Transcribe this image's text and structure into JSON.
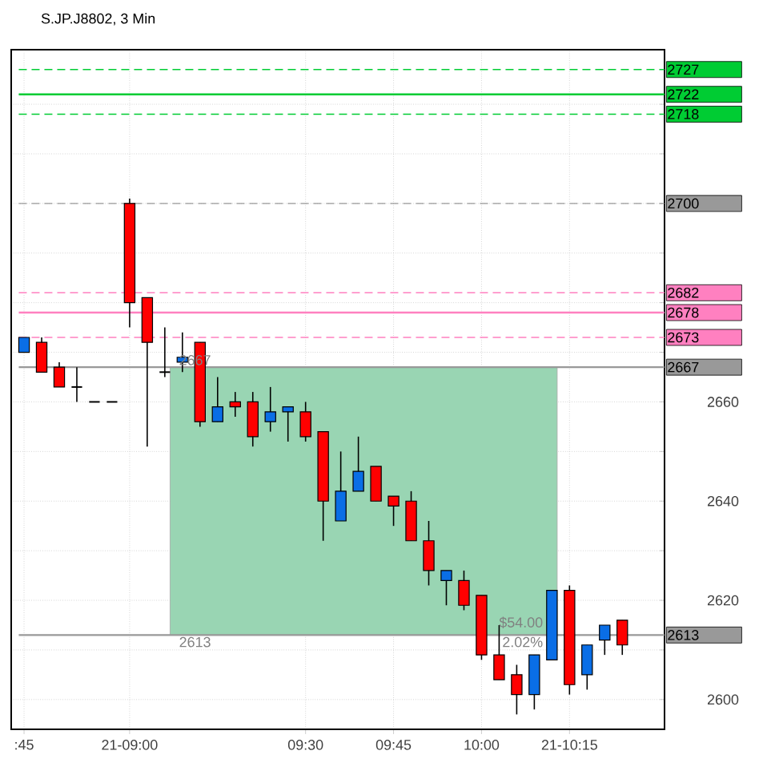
{
  "chart_data": {
    "type": "candlestick",
    "title": "S.JP.J8802, 3 Min",
    "categories": [
      ":45",
      null,
      null,
      null,
      null,
      null,
      "21-09:00",
      null,
      null,
      null,
      null,
      null,
      null,
      null,
      null,
      null,
      "09:30",
      null,
      null,
      null,
      null,
      "09:45",
      null,
      null,
      null,
      null,
      "10:00",
      null,
      null,
      null,
      null,
      "21-10:15",
      null,
      null,
      null
    ],
    "ohlc": [
      [
        2670,
        2673,
        2670,
        2673
      ],
      [
        2672,
        2673,
        2666,
        2666
      ],
      [
        2667,
        2668,
        2663,
        2663
      ],
      [
        2663,
        2667,
        2660,
        2663
      ],
      [
        2660,
        2660,
        2660,
        2660
      ],
      [
        2660,
        2660,
        2660,
        2660
      ],
      [
        2700,
        2701,
        2675,
        2680
      ],
      [
        2681,
        2681,
        2651,
        2672
      ],
      [
        2666,
        2675,
        2665,
        2666
      ],
      [
        2668,
        2674,
        2666,
        2669
      ],
      [
        2672,
        2672,
        2655,
        2656
      ],
      [
        2656,
        2665,
        2656,
        2659
      ],
      [
        2660,
        2662,
        2657,
        2659
      ],
      [
        2660,
        2662,
        2651,
        2653
      ],
      [
        2656,
        2663,
        2654,
        2658
      ],
      [
        2658,
        2659,
        2652,
        2659
      ],
      [
        2658,
        2660,
        2652,
        2653
      ],
      [
        2654,
        2654,
        2632,
        2640
      ],
      [
        2636,
        2650,
        2636,
        2642
      ],
      [
        2642,
        2653,
        2642,
        2646
      ],
      [
        2647,
        2647,
        2640,
        2640
      ],
      [
        2641,
        2641,
        2635,
        2639
      ],
      [
        2640,
        2642,
        2632,
        2632
      ],
      [
        2632,
        2636,
        2623,
        2626
      ],
      [
        2624,
        2626,
        2619,
        2626
      ],
      [
        2624,
        2626,
        2618,
        2619
      ],
      [
        2621,
        2621,
        2608,
        2609
      ],
      [
        2609,
        2615,
        2604,
        2604
      ],
      [
        2605,
        2607,
        2597,
        2601
      ],
      [
        2601,
        2609,
        2598,
        2609
      ],
      [
        2608,
        2622,
        2608,
        2622
      ],
      [
        2622,
        2623,
        2601,
        2603
      ],
      [
        2605,
        2611,
        2602,
        2611
      ],
      [
        2612,
        2615,
        2609,
        2615
      ],
      [
        2616,
        2616,
        2609,
        2611
      ]
    ],
    "colors": [
      "#0a6ee6",
      "#ff0000",
      "#ff0000",
      "#000000",
      "#000000",
      "#000000",
      "#ff0000",
      "#ff0000",
      "#000000",
      "#0a6ee6",
      "#ff0000",
      "#0a6ee6",
      "#ff0000",
      "#ff0000",
      "#0a6ee6",
      "#0a6ee6",
      "#ff0000",
      "#ff0000",
      "#0a6ee6",
      "#0a6ee6",
      "#ff0000",
      "#ff0000",
      "#ff0000",
      "#ff0000",
      "#0a6ee6",
      "#ff0000",
      "#ff0000",
      "#ff0000",
      "#ff0000",
      "#0a6ee6",
      "#0a6ee6",
      "#ff0000",
      "#0a6ee6",
      "#0a6ee6",
      "#ff0000"
    ],
    "ylim": [
      2594,
      2731
    ],
    "yticks": [
      2600,
      {
        "value": 2610,
        "label": null
      },
      2620,
      {
        "value": 2630,
        "label": null
      },
      2640,
      {
        "value": 2650,
        "label": null
      },
      2660,
      {
        "value": 2670,
        "label": null
      },
      {
        "value": 2680,
        "label": null
      },
      {
        "value": 2690,
        "label": null
      },
      {
        "value": 2700,
        "label": null
      },
      {
        "value": 2710,
        "label": null
      },
      {
        "value": 2720,
        "label": null
      }
    ],
    "grid": true,
    "ref_lines": [
      {
        "axis": "y",
        "value": 2727,
        "label": "2727",
        "color": "#00cc33",
        "line_style": "dashed"
      },
      {
        "axis": "y",
        "value": 2722,
        "label": "2722",
        "color": "#00cc33",
        "line_style": "solid"
      },
      {
        "axis": "y",
        "value": 2718,
        "label": "2718",
        "color": "#00cc33",
        "line_style": "dashed"
      },
      {
        "axis": "y",
        "value": 2700,
        "label": "2700",
        "color": "#999999",
        "line_style": "dashed"
      },
      {
        "axis": "y",
        "value": 2682,
        "label": "2682",
        "color": "#ff80c0",
        "line_style": "dashed"
      },
      {
        "axis": "y",
        "value": 2678,
        "label": "2678",
        "color": "#ff80c0",
        "line_style": "solid"
      },
      {
        "axis": "y",
        "value": 2673,
        "label": "2673",
        "color": "#ff80c0",
        "line_style": "dashed"
      },
      {
        "axis": "y",
        "value": 2667,
        "label": "2667",
        "color": "#999999",
        "line_style": "solid"
      },
      {
        "axis": "y",
        "value": 2613,
        "label": "2613",
        "color": "#999999",
        "line_style": "solid"
      }
    ],
    "bands": [
      {
        "axis": "y",
        "from": 2613,
        "to": 2667,
        "color": "#99d5b3"
      }
    ],
    "annotations": [
      {
        "text": "2667",
        "y": 2667
      },
      {
        "text": "2613",
        "y": 2613
      },
      {
        "text": "$54.00",
        "y": 2613
      },
      {
        "text": "2.02%",
        "y": 2613
      }
    ]
  }
}
